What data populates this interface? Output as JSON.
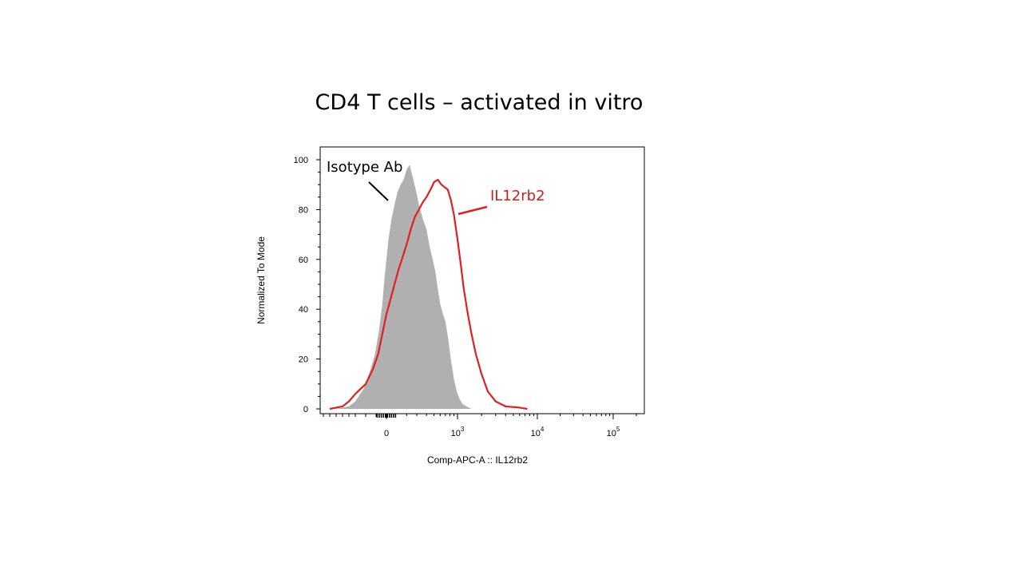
{
  "slide": {
    "title": "CD4 T cells – activated in vitro"
  },
  "chart_data": {
    "type": "area",
    "title": "CD4 T cells – activated in vitro",
    "xlabel": "Comp-APC-A :: IL12rb2",
    "ylabel": "Normalized To Mode",
    "x_scale": "biexponential",
    "x_ticks": [
      {
        "value": 0,
        "label": "0"
      },
      {
        "value": 1000,
        "base": "10",
        "exp": "3"
      },
      {
        "value": 10000,
        "base": "10",
        "exp": "4"
      },
      {
        "value": 100000,
        "base": "10",
        "exp": "5"
      }
    ],
    "ylim": [
      0,
      100
    ],
    "y_ticks": [
      0,
      20,
      40,
      60,
      80,
      100
    ],
    "grid": false,
    "series": [
      {
        "name": "Isotype Ab",
        "style": "filled",
        "color": "#b0b0b0",
        "x": [
          -600,
          -400,
          -300,
          -220,
          -160,
          -110,
          -70,
          -40,
          -20,
          0,
          20,
          50,
          80,
          110,
          140,
          170,
          200,
          230,
          260,
          290,
          320,
          360,
          400,
          440,
          480,
          520,
          560,
          600,
          650,
          700,
          760,
          820,
          900,
          980,
          1060,
          1150,
          1300,
          1500
        ],
        "y": [
          0,
          1,
          3,
          8,
          15,
          22,
          32,
          42,
          52,
          60,
          68,
          76,
          82,
          87,
          90,
          92,
          96,
          98,
          93,
          88,
          82,
          76,
          72,
          65,
          60,
          55,
          48,
          42,
          38,
          35,
          28,
          20,
          12,
          7,
          4,
          2,
          1,
          0
        ]
      },
      {
        "name": "IL12rb2",
        "style": "line",
        "color": "#e02020",
        "x": [
          -700,
          -500,
          -400,
          -300,
          -200,
          -130,
          -80,
          -40,
          0,
          40,
          80,
          120,
          160,
          200,
          240,
          280,
          320,
          360,
          400,
          450,
          500,
          560,
          620,
          680,
          750,
          820,
          900,
          1000,
          1100,
          1200,
          1350,
          1500,
          1700,
          2000,
          2400,
          3000,
          4000,
          6000,
          7500
        ],
        "y": [
          0,
          1,
          3,
          6,
          10,
          16,
          22,
          30,
          38,
          44,
          50,
          56,
          61,
          66,
          72,
          77,
          80,
          83,
          85,
          88,
          91,
          92,
          90,
          89,
          88,
          84,
          78,
          68,
          58,
          48,
          38,
          30,
          22,
          14,
          7,
          3,
          1,
          0.5,
          0
        ]
      }
    ],
    "annotations": [
      {
        "text": "Isotype Ab",
        "color": "#000000",
        "target_series": "Isotype Ab"
      },
      {
        "text": "IL12rb2",
        "color": "#cc1e1e",
        "target_series": "IL12rb2"
      }
    ]
  }
}
